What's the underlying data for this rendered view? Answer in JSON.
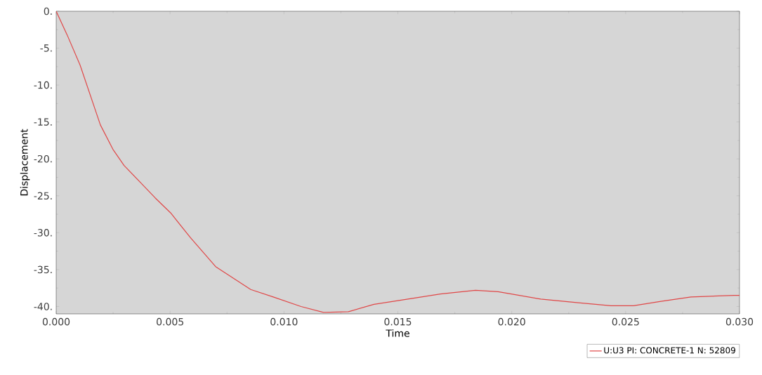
{
  "chart_data": {
    "type": "line",
    "xlabel": "Time",
    "ylabel": "Displacement",
    "x": [
      0,
      0.00048,
      0.00105,
      0.00194,
      0.00249,
      0.00298,
      0.0037,
      0.00435,
      0.00502,
      0.0059,
      0.007,
      0.00854,
      0.00953,
      0.01075,
      0.01174,
      0.01283,
      0.01395,
      0.0148,
      0.01687,
      0.01841,
      0.0194,
      0.02127,
      0.02293,
      0.02436,
      0.02534,
      0.02655,
      0.02787,
      0.02975,
      0.03
    ],
    "series": [
      {
        "name": "U:U3 PI: CONCRETE-1 N: 52809",
        "color": "#e04848",
        "values": [
          0,
          -3.2,
          -7.3,
          -15.4,
          -18.7,
          -20.9,
          -23.2,
          -25.3,
          -27.3,
          -30.7,
          -34.6,
          -37.7,
          -38.7,
          -40.0,
          -40.8,
          -40.7,
          -39.7,
          -39.3,
          -38.3,
          -37.8,
          -38.0,
          -39.0,
          -39.5,
          -39.9,
          -39.9,
          -39.3,
          -38.7,
          -38.5,
          -38.5
        ]
      }
    ],
    "xlim": [
      0,
      0.03
    ],
    "ylim": [
      -41,
      0
    ],
    "xticks": [
      {
        "value": 0,
        "label": "0.000"
      },
      {
        "value": 0.005,
        "label": "0.005"
      },
      {
        "value": 0.01,
        "label": "0.010"
      },
      {
        "value": 0.015,
        "label": "0.015"
      },
      {
        "value": 0.02,
        "label": "0.020"
      },
      {
        "value": 0.025,
        "label": "0.025"
      },
      {
        "value": 0.03,
        "label": "0.030"
      }
    ],
    "yticks": [
      {
        "value": 0,
        "label": "0."
      },
      {
        "value": -5,
        "label": "-5."
      },
      {
        "value": -10,
        "label": "-10."
      },
      {
        "value": -15,
        "label": "-15."
      },
      {
        "value": -20,
        "label": "-20."
      },
      {
        "value": -25,
        "label": "-25."
      },
      {
        "value": -30,
        "label": "-30."
      },
      {
        "value": -35,
        "label": "-35."
      },
      {
        "value": -40,
        "label": "-40."
      }
    ],
    "grid": false,
    "legend": "bottom right",
    "marker": "none",
    "line_style": "solid"
  }
}
